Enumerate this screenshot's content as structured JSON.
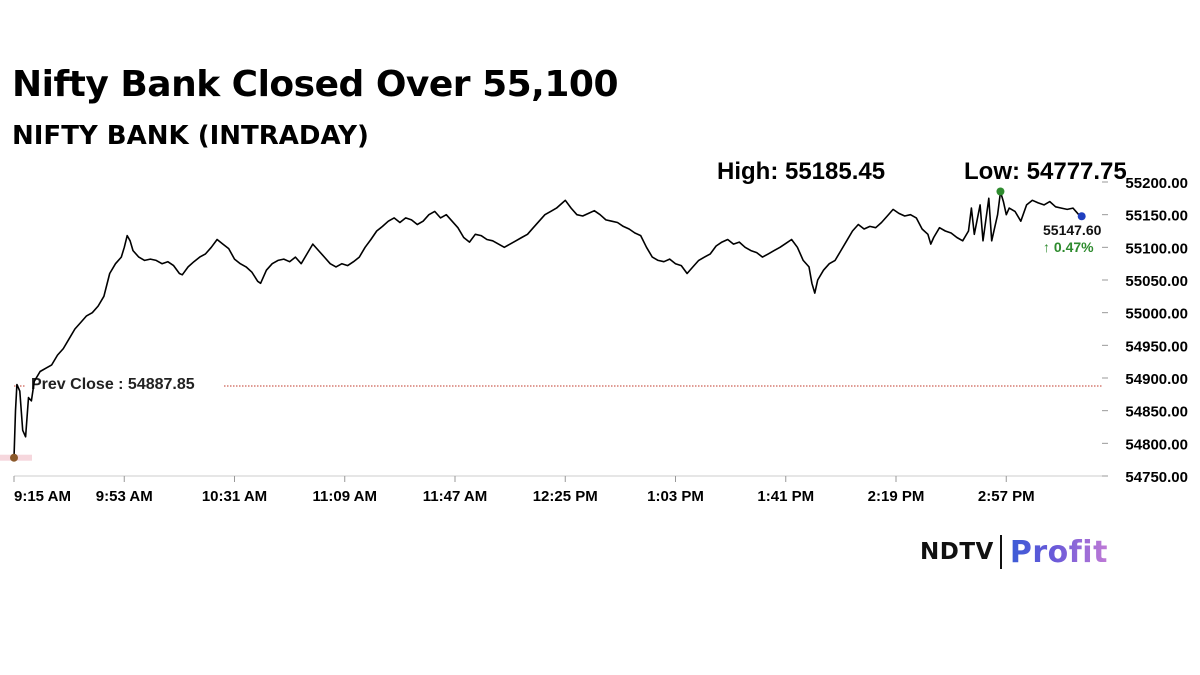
{
  "header": {
    "title": "Nifty Bank Closed Over 55,100",
    "subtitle": "NIFTY BANK (INTRADAY)",
    "high_text": "High: 55185.45",
    "low_text": "Low: 54777.75"
  },
  "chart_data": {
    "type": "line",
    "title": "NIFTY BANK (INTRADAY)",
    "xlabel": "",
    "ylabel": "",
    "x_tick_labels": [
      "9:15 AM",
      "9:53 AM",
      "10:31 AM",
      "11:09 AM",
      "11:47 AM",
      "12:25 PM",
      "1:03 PM",
      "1:41 PM",
      "2:19 PM",
      "2:57 PM"
    ],
    "x_tick_minutes": [
      0,
      38,
      76,
      114,
      152,
      190,
      228,
      266,
      304,
      342
    ],
    "x_range_minutes": [
      0,
      375
    ],
    "y_tick_labels": [
      "55200.00",
      "55150.00",
      "55100.00",
      "55050.00",
      "55000.00",
      "54950.00",
      "54900.00",
      "54850.00",
      "54800.00",
      "54750.00"
    ],
    "ylim": [
      54750,
      55200
    ],
    "grid": false,
    "y_axis_side": "right",
    "prev_close": 54887.85,
    "prev_close_label": "Prev Close : 54887.85",
    "high": 55185.45,
    "low": 54777.75,
    "last_value_label": "55147.60",
    "change_label": "↑ 0.47%",
    "series": [
      {
        "points": [
          [
            0,
            54778
          ],
          [
            0.5,
            54850
          ],
          [
            1,
            54890
          ],
          [
            2,
            54880
          ],
          [
            3,
            54820
          ],
          [
            4,
            54810
          ],
          [
            5,
            54870
          ],
          [
            6,
            54865
          ],
          [
            7,
            54895
          ],
          [
            9,
            54910
          ],
          [
            11,
            54915
          ],
          [
            13,
            54920
          ],
          [
            15,
            54935
          ],
          [
            17,
            54945
          ],
          [
            19,
            54960
          ],
          [
            21,
            54975
          ],
          [
            23,
            54985
          ],
          [
            25,
            54995
          ],
          [
            27,
            55000
          ],
          [
            29,
            55010
          ],
          [
            31,
            55025
          ],
          [
            33,
            55060
          ],
          [
            35,
            55075
          ],
          [
            37,
            55085
          ],
          [
            38,
            55100
          ],
          [
            39,
            55118
          ],
          [
            40,
            55110
          ],
          [
            41,
            55095
          ],
          [
            43,
            55085
          ],
          [
            45,
            55080
          ],
          [
            47,
            55082
          ],
          [
            49,
            55080
          ],
          [
            51,
            55075
          ],
          [
            53,
            55078
          ],
          [
            55,
            55072
          ],
          [
            57,
            55060
          ],
          [
            58,
            55058
          ],
          [
            60,
            55070
          ],
          [
            62,
            55078
          ],
          [
            64,
            55085
          ],
          [
            66,
            55090
          ],
          [
            68,
            55100
          ],
          [
            70,
            55112
          ],
          [
            72,
            55105
          ],
          [
            74,
            55098
          ],
          [
            76,
            55082
          ],
          [
            78,
            55075
          ],
          [
            80,
            55070
          ],
          [
            82,
            55062
          ],
          [
            84,
            55048
          ],
          [
            85,
            55045
          ],
          [
            87,
            55065
          ],
          [
            89,
            55075
          ],
          [
            91,
            55080
          ],
          [
            93,
            55082
          ],
          [
            95,
            55078
          ],
          [
            97,
            55085
          ],
          [
            99,
            55075
          ],
          [
            101,
            55090
          ],
          [
            103,
            55105
          ],
          [
            105,
            55095
          ],
          [
            107,
            55085
          ],
          [
            109,
            55075
          ],
          [
            111,
            55070
          ],
          [
            113,
            55075
          ],
          [
            115,
            55072
          ],
          [
            117,
            55078
          ],
          [
            119,
            55085
          ],
          [
            121,
            55100
          ],
          [
            123,
            55112
          ],
          [
            125,
            55125
          ],
          [
            127,
            55132
          ],
          [
            129,
            55140
          ],
          [
            131,
            55145
          ],
          [
            133,
            55138
          ],
          [
            135,
            55145
          ],
          [
            137,
            55142
          ],
          [
            139,
            55135
          ],
          [
            141,
            55140
          ],
          [
            143,
            55150
          ],
          [
            145,
            55155
          ],
          [
            147,
            55145
          ],
          [
            149,
            55150
          ],
          [
            151,
            55140
          ],
          [
            153,
            55130
          ],
          [
            155,
            55115
          ],
          [
            157,
            55108
          ],
          [
            159,
            55120
          ],
          [
            161,
            55118
          ],
          [
            163,
            55112
          ],
          [
            165,
            55110
          ],
          [
            167,
            55105
          ],
          [
            169,
            55100
          ],
          [
            171,
            55105
          ],
          [
            173,
            55110
          ],
          [
            175,
            55115
          ],
          [
            177,
            55120
          ],
          [
            179,
            55130
          ],
          [
            181,
            55140
          ],
          [
            183,
            55150
          ],
          [
            185,
            55155
          ],
          [
            187,
            55160
          ],
          [
            189,
            55168
          ],
          [
            190,
            55172
          ],
          [
            192,
            55160
          ],
          [
            194,
            55150
          ],
          [
            196,
            55148
          ],
          [
            198,
            55152
          ],
          [
            200,
            55156
          ],
          [
            202,
            55150
          ],
          [
            204,
            55142
          ],
          [
            206,
            55140
          ],
          [
            208,
            55138
          ],
          [
            210,
            55132
          ],
          [
            212,
            55128
          ],
          [
            214,
            55122
          ],
          [
            216,
            55118
          ],
          [
            218,
            55100
          ],
          [
            220,
            55085
          ],
          [
            222,
            55080
          ],
          [
            224,
            55078
          ],
          [
            226,
            55082
          ],
          [
            228,
            55075
          ],
          [
            230,
            55072
          ],
          [
            232,
            55060
          ],
          [
            234,
            55070
          ],
          [
            236,
            55080
          ],
          [
            238,
            55085
          ],
          [
            240,
            55090
          ],
          [
            242,
            55102
          ],
          [
            244,
            55108
          ],
          [
            246,
            55112
          ],
          [
            248,
            55105
          ],
          [
            250,
            55108
          ],
          [
            252,
            55100
          ],
          [
            254,
            55095
          ],
          [
            256,
            55092
          ],
          [
            258,
            55085
          ],
          [
            260,
            55090
          ],
          [
            262,
            55095
          ],
          [
            264,
            55100
          ],
          [
            266,
            55106
          ],
          [
            268,
            55112
          ],
          [
            270,
            55100
          ],
          [
            272,
            55080
          ],
          [
            274,
            55070
          ],
          [
            275,
            55045
          ],
          [
            276,
            55030
          ],
          [
            277,
            55050
          ],
          [
            279,
            55065
          ],
          [
            281,
            55075
          ],
          [
            283,
            55080
          ],
          [
            285,
            55095
          ],
          [
            287,
            55110
          ],
          [
            289,
            55125
          ],
          [
            291,
            55135
          ],
          [
            293,
            55128
          ],
          [
            295,
            55132
          ],
          [
            297,
            55130
          ],
          [
            299,
            55138
          ],
          [
            301,
            55148
          ],
          [
            303,
            55158
          ],
          [
            305,
            55152
          ],
          [
            307,
            55148
          ],
          [
            309,
            55150
          ],
          [
            311,
            55145
          ],
          [
            313,
            55128
          ],
          [
            315,
            55120
          ],
          [
            316,
            55105
          ],
          [
            317,
            55115
          ],
          [
            319,
            55130
          ],
          [
            321,
            55125
          ],
          [
            323,
            55122
          ],
          [
            325,
            55115
          ],
          [
            327,
            55110
          ],
          [
            329,
            55125
          ],
          [
            330,
            55160
          ],
          [
            331,
            55120
          ],
          [
            333,
            55165
          ],
          [
            334,
            55110
          ],
          [
            336,
            55175
          ],
          [
            337,
            55110
          ],
          [
            339,
            55150
          ],
          [
            340,
            55185
          ],
          [
            341,
            55170
          ],
          [
            342,
            55150
          ],
          [
            343,
            55160
          ],
          [
            345,
            55155
          ],
          [
            347,
            55140
          ],
          [
            349,
            55165
          ],
          [
            351,
            55172
          ],
          [
            353,
            55168
          ],
          [
            355,
            55165
          ],
          [
            357,
            55170
          ],
          [
            359,
            55162
          ],
          [
            361,
            55160
          ],
          [
            363,
            55158
          ],
          [
            365,
            55160
          ],
          [
            367,
            55150
          ],
          [
            368,
            55148
          ]
        ]
      }
    ],
    "markers": {
      "open": {
        "minute": 0,
        "value": 54778
      },
      "high": {
        "minute": 340,
        "value": 55185.45
      },
      "last": {
        "minute": 368,
        "value": 55147.6
      }
    }
  },
  "colors": {
    "line": "#000000",
    "prev_close_line": "#c0392b",
    "high_marker": "#2e8b2e",
    "last_marker": "#1f3fbf",
    "open_marker": "#8b5a2b",
    "change_text": "#2e8b2e"
  },
  "logo": {
    "ndtv": "NDTV",
    "profit": "Profit"
  }
}
